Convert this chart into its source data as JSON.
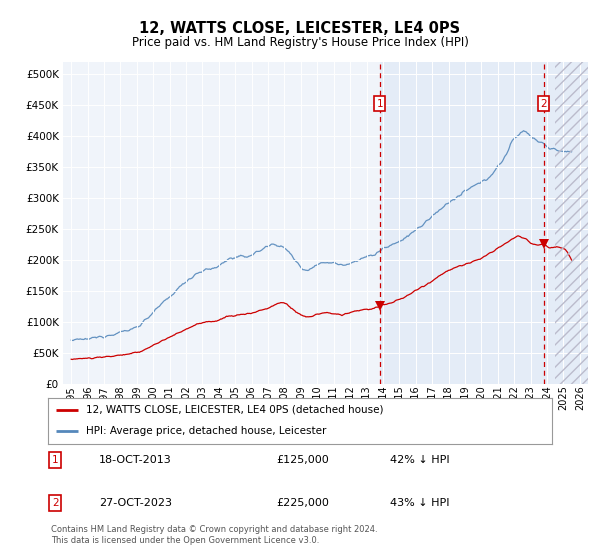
{
  "title": "12, WATTS CLOSE, LEICESTER, LE4 0PS",
  "subtitle": "Price paid vs. HM Land Registry's House Price Index (HPI)",
  "footer": "Contains HM Land Registry data © Crown copyright and database right 2024.\nThis data is licensed under the Open Government Licence v3.0.",
  "legend_label_red": "12, WATTS CLOSE, LEICESTER, LE4 0PS (detached house)",
  "legend_label_blue": "HPI: Average price, detached house, Leicester",
  "transaction1_date": "18-OCT-2013",
  "transaction1_price": "£125,000",
  "transaction1_hpi": "42% ↓ HPI",
  "transaction2_date": "27-OCT-2023",
  "transaction2_price": "£225,000",
  "transaction2_hpi": "43% ↓ HPI",
  "transaction1_year": 2013.8,
  "transaction1_value": 125000,
  "transaction2_year": 2023.8,
  "transaction2_value": 225000,
  "color_red": "#cc0000",
  "color_blue": "#5588bb",
  "color_bg_light": "#dce8f5",
  "color_bg_white": "#ffffff",
  "ylim_min": 0,
  "ylim_max": 520000,
  "xlim_min": 1994.5,
  "xlim_max": 2026.5,
  "yticks": [
    0,
    50000,
    100000,
    150000,
    200000,
    250000,
    300000,
    350000,
    400000,
    450000,
    500000
  ],
  "hatch_start": 2024.5
}
